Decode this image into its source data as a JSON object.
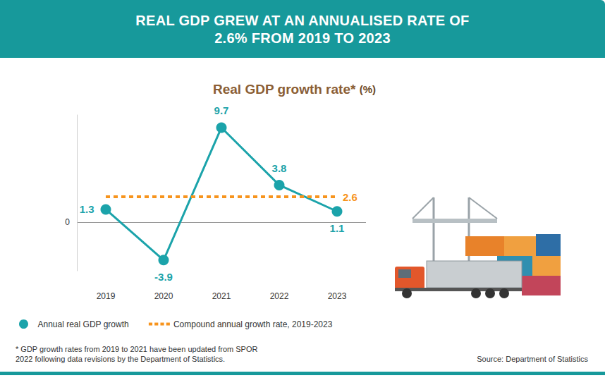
{
  "header": {
    "title": "REAL GDP GREW AT AN ANNUALISED RATE OF 2.6% FROM 2019 TO 2023"
  },
  "chart_data": {
    "type": "line",
    "title": "Real GDP growth rate*",
    "subtitle": "(%)",
    "categories": [
      "2019",
      "2020",
      "2021",
      "2022",
      "2023"
    ],
    "series": [
      {
        "name": "Annual real GDP growth",
        "color": "#1ba3aa",
        "values": [
          1.3,
          -3.9,
          9.7,
          3.8,
          1.1
        ],
        "marker": "circle",
        "line_style": "solid",
        "data_labels": true
      },
      {
        "name": "Compound annual growth rate, 2019-2023",
        "type": "hline",
        "color": "#f7941d",
        "value": 2.6,
        "line_style": "dashed",
        "data_labels": true
      }
    ],
    "ylim": [
      -5,
      11
    ],
    "yticks": [
      0
    ],
    "grid": true,
    "legend": "bottom"
  },
  "footnote": "* GDP growth rates from 2019 to 2021 have been updated from SPOR 2022 following data revisions by the Department of Statistics.",
  "source": "Source: Department of Statistics"
}
